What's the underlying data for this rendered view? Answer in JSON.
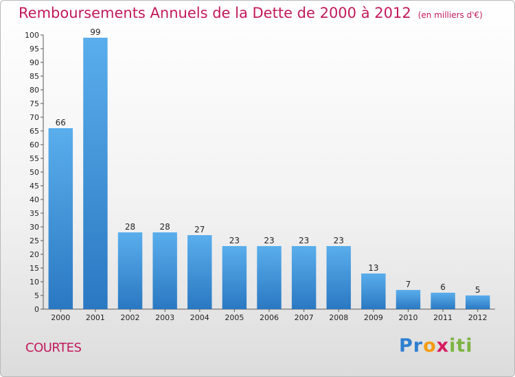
{
  "chart_data": {
    "type": "bar",
    "title": "Remboursements Annuels de la Dette de 2000 à 2012",
    "subtitle": "(en milliers d'€)",
    "categories": [
      "2000",
      "2001",
      "2002",
      "2003",
      "2004",
      "2005",
      "2006",
      "2007",
      "2008",
      "2009",
      "2010",
      "2011",
      "2012"
    ],
    "values": [
      66,
      99,
      28,
      28,
      27,
      23,
      23,
      23,
      23,
      13,
      7,
      6,
      5
    ],
    "ylim": [
      0,
      100
    ],
    "yticks": [
      0,
      5,
      10,
      15,
      20,
      25,
      30,
      35,
      40,
      45,
      50,
      55,
      60,
      65,
      70,
      75,
      80,
      85,
      90,
      95,
      100
    ],
    "grid": false,
    "bar_color": "#3d8fd8",
    "title_color": "#c2185b"
  },
  "footer": {
    "commune": "COURTES",
    "logo": "Proxiti"
  }
}
